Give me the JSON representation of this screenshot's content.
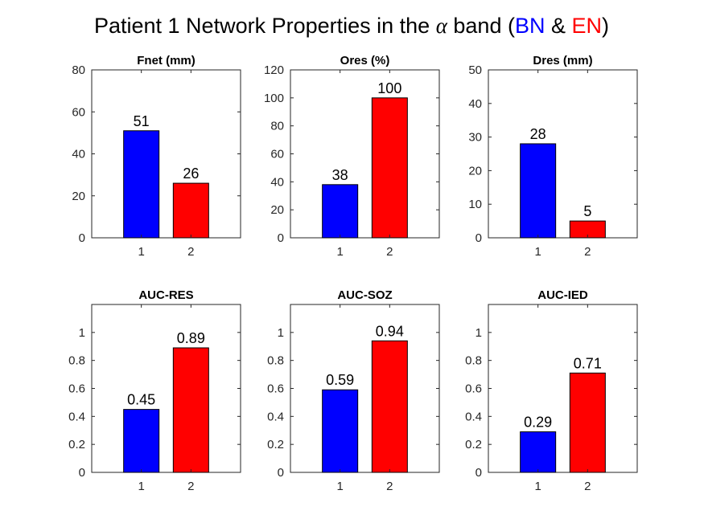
{
  "title": {
    "prefix": "Patient 1 Network Properties in the ",
    "symbol": "α",
    "middle": " band (",
    "bn": "BN",
    "amp": " & ",
    "en": "EN",
    "suffix": ")"
  },
  "colors": {
    "bn": "#0000ff",
    "en": "#ff0000"
  },
  "chart_data": [
    {
      "type": "bar",
      "title": "Fnet (mm)",
      "categories": [
        "1",
        "2"
      ],
      "values": [
        51,
        26
      ],
      "value_labels": [
        "51",
        "26"
      ],
      "ylim": [
        0,
        80
      ],
      "yticks": [
        0,
        20,
        40,
        60,
        80
      ],
      "ytick_labels": [
        "0",
        "20",
        "40",
        "60",
        "80"
      ],
      "colors": [
        "#0000ff",
        "#ff0000"
      ]
    },
    {
      "type": "bar",
      "title": "Ores (%)",
      "categories": [
        "1",
        "2"
      ],
      "values": [
        38,
        100
      ],
      "value_labels": [
        "38",
        "100"
      ],
      "ylim": [
        0,
        120
      ],
      "yticks": [
        0,
        20,
        40,
        60,
        80,
        100,
        120
      ],
      "ytick_labels": [
        "0",
        "20",
        "40",
        "60",
        "80",
        "100",
        "120"
      ],
      "colors": [
        "#0000ff",
        "#ff0000"
      ]
    },
    {
      "type": "bar",
      "title": "Dres (mm)",
      "categories": [
        "1",
        "2"
      ],
      "values": [
        28,
        5
      ],
      "value_labels": [
        "28",
        "5"
      ],
      "ylim": [
        0,
        50
      ],
      "yticks": [
        0,
        10,
        20,
        30,
        40,
        50
      ],
      "ytick_labels": [
        "0",
        "10",
        "20",
        "30",
        "40",
        "50"
      ],
      "colors": [
        "#0000ff",
        "#ff0000"
      ]
    },
    {
      "type": "bar",
      "title": "AUC-RES",
      "categories": [
        "1",
        "2"
      ],
      "values": [
        0.45,
        0.89
      ],
      "value_labels": [
        "0.45",
        "0.89"
      ],
      "ylim": [
        0,
        1.2
      ],
      "yticks": [
        0,
        0.2,
        0.4,
        0.6,
        0.8,
        1
      ],
      "ytick_labels": [
        "0",
        "0.2",
        "0.4",
        "0.6",
        "0.8",
        "1"
      ],
      "colors": [
        "#0000ff",
        "#ff0000"
      ]
    },
    {
      "type": "bar",
      "title": "AUC-SOZ",
      "categories": [
        "1",
        "2"
      ],
      "values": [
        0.59,
        0.94
      ],
      "value_labels": [
        "0.59",
        "0.94"
      ],
      "ylim": [
        0,
        1.2
      ],
      "yticks": [
        0,
        0.2,
        0.4,
        0.6,
        0.8,
        1
      ],
      "ytick_labels": [
        "0",
        "0.2",
        "0.4",
        "0.6",
        "0.8",
        "1"
      ],
      "colors": [
        "#0000ff",
        "#ff0000"
      ]
    },
    {
      "type": "bar",
      "title": "AUC-IED",
      "categories": [
        "1",
        "2"
      ],
      "values": [
        0.29,
        0.71
      ],
      "value_labels": [
        "0.29",
        "0.71"
      ],
      "ylim": [
        0,
        1.2
      ],
      "yticks": [
        0,
        0.2,
        0.4,
        0.6,
        0.8,
        1
      ],
      "ytick_labels": [
        "0",
        "0.2",
        "0.4",
        "0.6",
        "0.8",
        "1"
      ],
      "colors": [
        "#0000ff",
        "#ff0000"
      ]
    }
  ]
}
